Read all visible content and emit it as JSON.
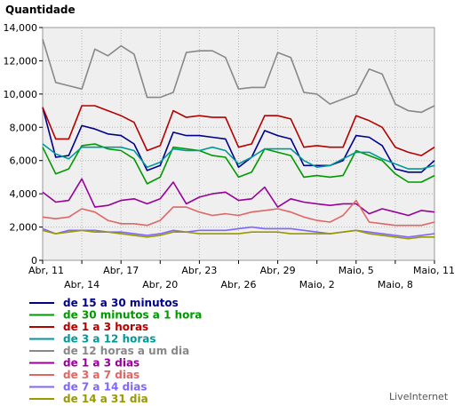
{
  "chart_data": {
    "type": "line",
    "ylabel": "Quantidade",
    "ylim": [
      0,
      14000
    ],
    "yticks": [
      0,
      2000,
      4000,
      6000,
      8000,
      10000,
      12000,
      14000
    ],
    "ytick_labels": [
      "0",
      "2,000",
      "4,000",
      "6,000",
      "8,000",
      "10,000",
      "12,000",
      "14,000"
    ],
    "x": [
      "Abr, 11",
      "Abr, 12",
      "Abr, 13",
      "Abr, 14",
      "Abr, 15",
      "Abr, 16",
      "Abr, 17",
      "Abr, 18",
      "Abr, 19",
      "Abr, 20",
      "Abr, 21",
      "Abr, 22",
      "Abr, 23",
      "Abr, 24",
      "Abr, 25",
      "Abr, 26",
      "Abr, 27",
      "Abr, 28",
      "Abr, 29",
      "Abr, 30",
      "Maio, 1",
      "Maio, 2",
      "Maio, 3",
      "Maio, 4",
      "Maio, 5",
      "Maio, 6",
      "Maio, 7",
      "Maio, 8",
      "Maio, 9",
      "Maio, 10",
      "Maio, 11"
    ],
    "xtick_labels": [
      {
        "label": "Abr, 11",
        "row": 1
      },
      {
        "label": "Abr, 14",
        "row": 2
      },
      {
        "label": "Abr, 17",
        "row": 1
      },
      {
        "label": "Abr, 20",
        "row": 2
      },
      {
        "label": "Abr, 23",
        "row": 1
      },
      {
        "label": "Abr, 26",
        "row": 2
      },
      {
        "label": "Abr, 29",
        "row": 1
      },
      {
        "label": "Maio, 2",
        "row": 2
      },
      {
        "label": "Maio, 5",
        "row": 1
      },
      {
        "label": "Maio, 8",
        "row": 2
      },
      {
        "label": "Maio, 11",
        "row": 1
      }
    ],
    "grid": true,
    "series": [
      {
        "name": "de 15 a 30 minutos",
        "color": "#00008b",
        "values": [
          9200,
          6200,
          6300,
          8100,
          7900,
          7600,
          7500,
          7000,
          5400,
          5700,
          7700,
          7500,
          7500,
          7400,
          7300,
          5600,
          6200,
          7800,
          7500,
          7300,
          5700,
          5700,
          5700,
          6000,
          7500,
          7400,
          6900,
          5500,
          5300,
          5300,
          6000
        ]
      },
      {
        "name": "de 30 minutos a 1 hora",
        "color": "#009900",
        "values": [
          6800,
          5200,
          5500,
          6900,
          7000,
          6700,
          6600,
          6100,
          4600,
          5000,
          6800,
          6700,
          6600,
          6300,
          6200,
          5000,
          5300,
          6700,
          6500,
          6300,
          5000,
          5100,
          5000,
          5100,
          6600,
          6300,
          6000,
          5200,
          4700,
          4700,
          5100
        ]
      },
      {
        "name": "de 1 a 3 horas",
        "color": "#b30000",
        "values": [
          9200,
          7300,
          7300,
          9300,
          9300,
          9000,
          8700,
          8300,
          6600,
          6900,
          9000,
          8600,
          8700,
          8600,
          8600,
          6800,
          7000,
          8700,
          8700,
          8500,
          6800,
          6900,
          6800,
          6800,
          8700,
          8400,
          8000,
          6800,
          6500,
          6300,
          6800
        ]
      },
      {
        "name": "de 3 a 12 horas",
        "color": "#009999",
        "values": [
          7000,
          6400,
          6100,
          6800,
          6800,
          6800,
          6800,
          6600,
          5600,
          5900,
          6700,
          6600,
          6600,
          6800,
          6600,
          5800,
          6200,
          6700,
          6700,
          6700,
          6000,
          5600,
          5700,
          6100,
          6500,
          6500,
          6100,
          5800,
          5500,
          5500,
          5700
        ]
      },
      {
        "name": "de 12 horas a um dia",
        "color": "#888888",
        "values": [
          13300,
          10700,
          10500,
          10300,
          12700,
          12300,
          12900,
          12400,
          9800,
          9800,
          10100,
          12500,
          12600,
          12600,
          12200,
          10300,
          10400,
          10400,
          12500,
          12200,
          10100,
          10000,
          9400,
          9700,
          10000,
          11500,
          11200,
          9400,
          9000,
          8900,
          9300
        ]
      },
      {
        "name": "de 1 a 3 dias",
        "color": "#990099",
        "values": [
          4100,
          3500,
          3600,
          4900,
          3200,
          3300,
          3600,
          3700,
          3400,
          3700,
          4700,
          3400,
          3800,
          4000,
          4100,
          3600,
          3700,
          4400,
          3200,
          3700,
          3500,
          3400,
          3300,
          3400,
          3400,
          2800,
          3100,
          2900,
          2700,
          3000,
          2900
        ]
      },
      {
        "name": "de 3 a 7 dias",
        "color": "#e06666",
        "values": [
          2600,
          2500,
          2600,
          3100,
          2900,
          2400,
          2200,
          2200,
          2100,
          2400,
          3200,
          3200,
          2900,
          2700,
          2800,
          2700,
          2900,
          3000,
          3100,
          2900,
          2600,
          2400,
          2300,
          2700,
          3600,
          2300,
          2200,
          2100,
          2100,
          2100,
          2300
        ]
      },
      {
        "name": "de 7 a 14 dias",
        "color": "#7f66ff",
        "values": [
          1900,
          1600,
          1800,
          1800,
          1800,
          1700,
          1700,
          1600,
          1500,
          1600,
          1800,
          1700,
          1800,
          1800,
          1800,
          1900,
          2000,
          1900,
          1900,
          1900,
          1800,
          1700,
          1600,
          1700,
          1800,
          1700,
          1600,
          1500,
          1400,
          1500,
          1600
        ]
      },
      {
        "name": "de 14 a 31 dia",
        "color": "#999900",
        "values": [
          1800,
          1600,
          1700,
          1800,
          1700,
          1700,
          1600,
          1500,
          1400,
          1500,
          1700,
          1700,
          1600,
          1600,
          1600,
          1600,
          1700,
          1700,
          1700,
          1600,
          1600,
          1600,
          1600,
          1700,
          1800,
          1600,
          1500,
          1400,
          1300,
          1400,
          1400
        ]
      }
    ]
  },
  "brand": "LiveInternet"
}
